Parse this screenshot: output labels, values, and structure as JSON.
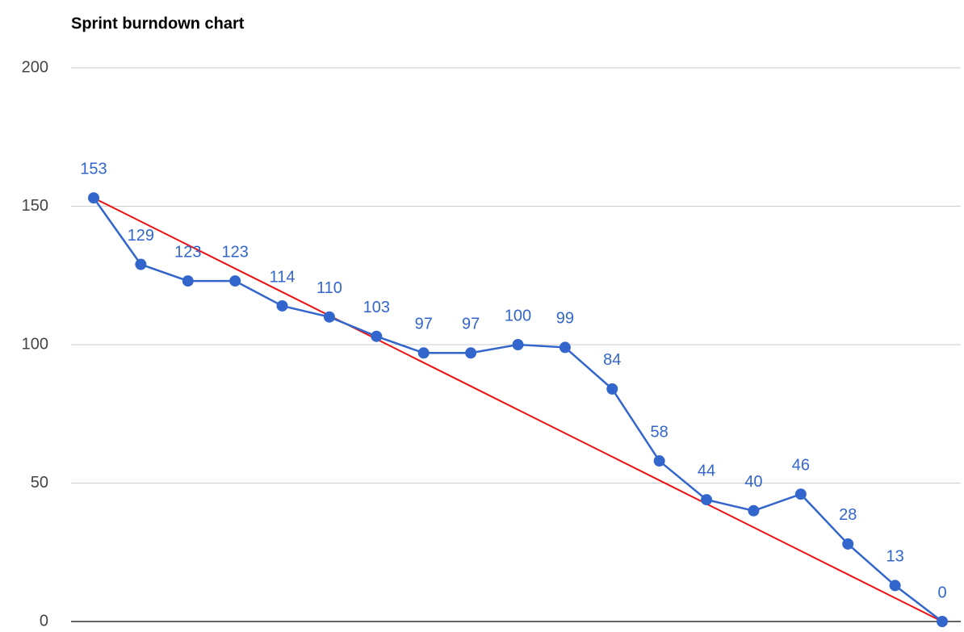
{
  "chart_data": {
    "type": "line",
    "title": "Sprint burndown chart",
    "series": [
      {
        "color": "#3366cc",
        "markers": true,
        "data_labels": true,
        "values": [
          153,
          129,
          123,
          123,
          114,
          110,
          103,
          97,
          97,
          100,
          99,
          84,
          58,
          44,
          40,
          46,
          28,
          13,
          0
        ]
      },
      {
        "color": "#ee1111",
        "markers": false,
        "data_labels": false,
        "values": [
          153,
          144.5,
          136,
          127.5,
          119,
          110.5,
          102,
          93.5,
          85,
          76.5,
          68,
          59.5,
          51,
          42.5,
          34,
          25.5,
          17,
          8.5,
          0
        ]
      }
    ],
    "ylim": [
      0,
      200
    ],
    "yticks": [
      0,
      50,
      100,
      150,
      200
    ],
    "grid": true
  }
}
